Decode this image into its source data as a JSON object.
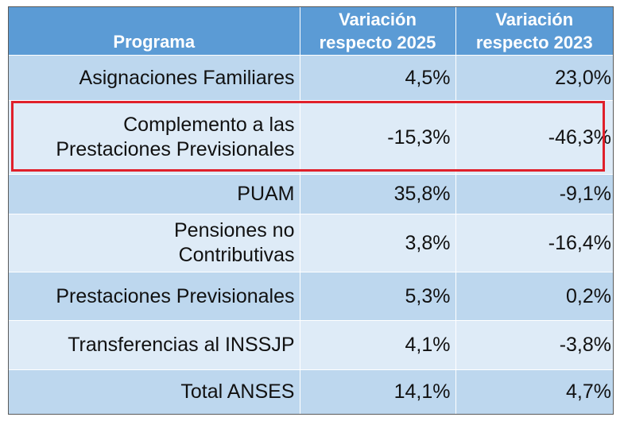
{
  "table": {
    "headers": {
      "programa": "Programa",
      "var2025_line1": "Variación",
      "var2025_line2": "respecto 2025",
      "var2023_line1": "Variación",
      "var2023_line2": "respecto 2023"
    },
    "rows": [
      {
        "programa": "Asignaciones Familiares",
        "var2025": "4,5%",
        "var2023": "23,0%"
      },
      {
        "programa_line1": "Complemento a las",
        "programa_line2": "Prestaciones Previsionales",
        "var2025": "-15,3%",
        "var2023": "-46,3%",
        "highlighted": true
      },
      {
        "programa": "PUAM",
        "var2025": "35,8%",
        "var2023": "-9,1%"
      },
      {
        "programa_line1": "Pensiones no",
        "programa_line2": "Contributivas",
        "var2025": "3,8%",
        "var2023": "-16,4%"
      },
      {
        "programa": "Prestaciones Previsionales",
        "var2025": "5,3%",
        "var2023": "0,2%"
      },
      {
        "programa": "Transferencias al INSSJP",
        "var2025": "4,1%",
        "var2023": "-3,8%"
      },
      {
        "programa": "Total ANSES",
        "var2025": "14,1%",
        "var2023": "4,7%"
      }
    ]
  },
  "colors": {
    "header_bg": "#5b9bd5",
    "row_dark": "#bdd7ee",
    "row_light": "#deebf7",
    "highlight_border": "#e0202a"
  }
}
